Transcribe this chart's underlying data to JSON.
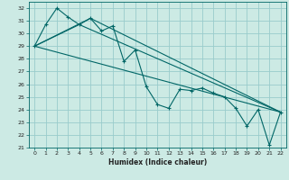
{
  "xlabel": "Humidex (Indice chaleur)",
  "background_color": "#cceae4",
  "grid_color": "#99cccc",
  "line_color": "#006666",
  "xlim": [
    -0.5,
    22.5
  ],
  "ylim": [
    21,
    32.5
  ],
  "yticks": [
    21,
    22,
    23,
    24,
    25,
    26,
    27,
    28,
    29,
    30,
    31,
    32
  ],
  "xticks": [
    0,
    1,
    2,
    3,
    4,
    5,
    6,
    7,
    8,
    9,
    10,
    11,
    12,
    13,
    14,
    15,
    16,
    17,
    18,
    19,
    20,
    21,
    22
  ],
  "series": [
    {
      "x": [
        0,
        1,
        2,
        3,
        4,
        5,
        6,
        7,
        8,
        9,
        10,
        11,
        12,
        13,
        14,
        15,
        16,
        17,
        18,
        19,
        20,
        21,
        22
      ],
      "y": [
        29.0,
        30.7,
        32.0,
        31.3,
        30.7,
        31.2,
        30.2,
        30.6,
        27.8,
        28.7,
        25.8,
        24.4,
        24.1,
        25.6,
        25.5,
        25.7,
        25.3,
        25.0,
        24.1,
        22.7,
        24.0,
        21.2,
        23.8
      ],
      "marker": true
    },
    {
      "x": [
        0,
        22
      ],
      "y": [
        29.0,
        23.8
      ],
      "marker": false
    },
    {
      "x": [
        0,
        5,
        22
      ],
      "y": [
        29.0,
        31.2,
        23.8
      ],
      "marker": false
    },
    {
      "x": [
        0,
        4,
        22
      ],
      "y": [
        29.0,
        30.7,
        23.8
      ],
      "marker": false
    }
  ]
}
